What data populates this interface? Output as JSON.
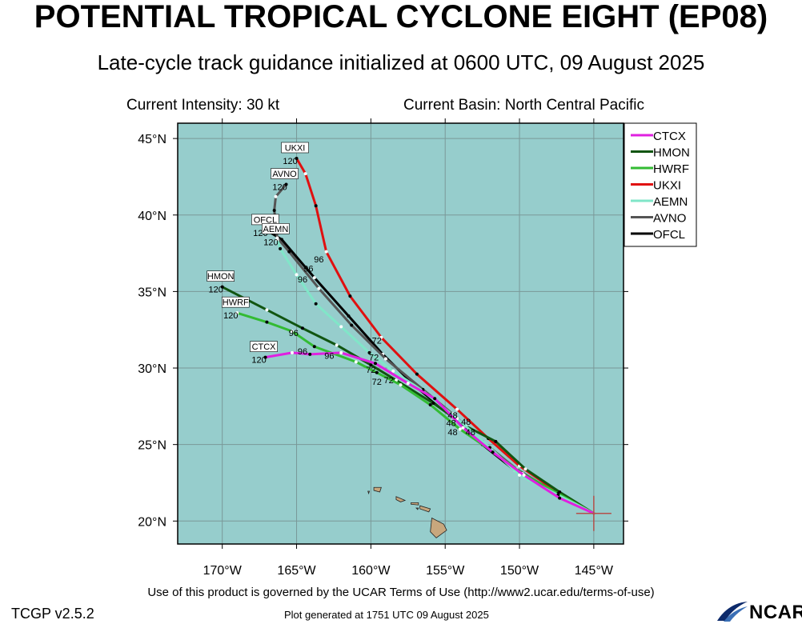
{
  "title": "POTENTIAL TROPICAL CYCLONE EIGHT (EP08)",
  "subtitle": "Late-cycle track guidance initialized at 0600 UTC, 09 August 2025",
  "current_intensity": "Current Intensity: 30 kt",
  "current_basin": "Current Basin: North Central Pacific",
  "terms": "Use of this product is governed by the UCAR Terms of Use (http://www2.ucar.edu/terms-of-use)",
  "version": "TCGP v2.5.2",
  "generated": "Plot generated at 1751 UTC   09 August 2025",
  "logo_text": "NCAR",
  "colors": {
    "ocean": "#96cdcc",
    "land": "#c8a77d",
    "grid": "#7a9898",
    "current_position": "#b4504a"
  },
  "map": {
    "lon_range": [
      -173,
      -143
    ],
    "lat_range": [
      18.5,
      46
    ],
    "lon_ticks": [
      "170°W",
      "165°W",
      "160°W",
      "155°W",
      "150°W",
      "145°W"
    ],
    "lat_ticks": [
      "20°N",
      "25°N",
      "30°N",
      "35°N",
      "40°N",
      "45°N"
    ],
    "current_position": [
      -145,
      20.5
    ]
  },
  "legend": [
    {
      "name": "CTCX",
      "color": "#e020e0"
    },
    {
      "name": "HMON",
      "color": "#115511"
    },
    {
      "name": "HWRF",
      "color": "#33bb33"
    },
    {
      "name": "UKXI",
      "color": "#e01010"
    },
    {
      "name": "AEMN",
      "color": "#80e6c8"
    },
    {
      "name": "AVNO",
      "color": "#555555"
    },
    {
      "name": "OFCL",
      "color": "#000000"
    }
  ],
  "tracks": [
    {
      "name": "OFCL",
      "color": "#000000",
      "end_label": "OFCL",
      "end_tau": "120",
      "points": [
        [
          -145,
          20.5
        ],
        [
          -147.5,
          21.9
        ],
        [
          -150.3,
          23.3
        ],
        [
          -152.5,
          25
        ],
        [
          -154.5,
          26.8
        ],
        [
          -157,
          28.8
        ],
        [
          -159.2,
          30.9
        ],
        [
          -161.5,
          33.4
        ],
        [
          -163.8,
          35.9
        ],
        [
          -166,
          38.4
        ],
        [
          -167,
          39
        ]
      ],
      "tau_labels": []
    },
    {
      "name": "AVNO",
      "color": "#555555",
      "end_label": "AVNO",
      "end_tau": "120",
      "points": [
        [
          -145,
          20.5
        ],
        [
          -147.5,
          21.8
        ],
        [
          -150.2,
          23.4
        ],
        [
          -152.5,
          25.2
        ],
        [
          -154.5,
          27
        ],
        [
          -156.5,
          28.6
        ],
        [
          -159,
          30.6
        ],
        [
          -161.3,
          32.8
        ],
        [
          -163.5,
          35.2
        ],
        [
          -165.5,
          37.6
        ],
        [
          -166.3,
          38.5
        ],
        [
          -166.5,
          40.3
        ],
        [
          -166.4,
          41.2
        ],
        [
          -165.7,
          42
        ]
      ],
      "tau_labels": [
        {
          "text": "96",
          "lon": -164.2,
          "lat": 36.3
        }
      ]
    },
    {
      "name": "UKXI",
      "color": "#e01010",
      "end_label": "UKXI",
      "end_tau": "120",
      "points": [
        [
          -145,
          20.5
        ],
        [
          -147.6,
          22
        ],
        [
          -150,
          23.6
        ],
        [
          -152.1,
          25.4
        ],
        [
          -154.2,
          27.3
        ],
        [
          -156.9,
          29.6
        ],
        [
          -159.3,
          32
        ],
        [
          -161.4,
          34.7
        ],
        [
          -163,
          37.6
        ],
        [
          -163.7,
          40.6
        ],
        [
          -164.4,
          42.7
        ],
        [
          -165,
          43.7
        ]
      ],
      "tau_labels": [
        {
          "text": "72",
          "lon": -159.6,
          "lat": 31.6
        },
        {
          "text": "96",
          "lon": -163.5,
          "lat": 36.9
        },
        {
          "text": "48",
          "lon": -154.5,
          "lat": 26.7
        }
      ]
    },
    {
      "name": "HMON",
      "color": "#115511",
      "end_label": "HMON",
      "end_tau": "120",
      "points": [
        [
          -145,
          20.5
        ],
        [
          -147.3,
          21.9
        ],
        [
          -149.6,
          23.4
        ],
        [
          -151.6,
          25.2
        ],
        [
          -153.6,
          26.2
        ],
        [
          -155.8,
          27.7
        ],
        [
          -158.3,
          29.2
        ],
        [
          -160,
          30.2
        ],
        [
          -162.3,
          31.5
        ],
        [
          -164.6,
          32.6
        ],
        [
          -167,
          33.8
        ],
        [
          -170,
          35.3
        ]
      ],
      "tau_labels": [
        {
          "text": "96",
          "lon": -165.2,
          "lat": 32.1
        },
        {
          "text": "48",
          "lon": -153.3,
          "lat": 25.6
        }
      ]
    },
    {
      "name": "HWRF",
      "color": "#33bb33",
      "end_label": "HWRF",
      "end_tau": "120",
      "points": [
        [
          -145,
          20.5
        ],
        [
          -147.4,
          21.8
        ],
        [
          -149.8,
          23.1
        ],
        [
          -151.9,
          24.6
        ],
        [
          -154,
          26
        ],
        [
          -156,
          27.6
        ],
        [
          -158,
          28.9
        ],
        [
          -159.6,
          29.7
        ],
        [
          -161,
          30.4
        ],
        [
          -163.8,
          31.4
        ],
        [
          -165.3,
          32.4
        ],
        [
          -167,
          33
        ],
        [
          -169,
          33.6
        ]
      ],
      "tau_labels": [
        {
          "text": "96",
          "lon": -164.6,
          "lat": 30.9
        },
        {
          "text": "72",
          "lon": -159.6,
          "lat": 28.9
        },
        {
          "text": "48",
          "lon": -154.5,
          "lat": 25.6
        }
      ]
    },
    {
      "name": "AEMN",
      "color": "#80e6c8",
      "end_label": "AEMN",
      "end_tau": "120",
      "points": [
        [
          -145,
          20.5
        ],
        [
          -147.4,
          21.7
        ],
        [
          -150,
          23
        ],
        [
          -152,
          24.8
        ],
        [
          -154.2,
          26.7
        ],
        [
          -156.5,
          28.5
        ],
        [
          -158.5,
          29.8
        ],
        [
          -160.1,
          31
        ],
        [
          -162,
          32.7
        ],
        [
          -163.7,
          34.2
        ],
        [
          -165,
          36.1
        ],
        [
          -166.1,
          37.8
        ],
        [
          -166.3,
          38.4
        ]
      ],
      "tau_labels": [
        {
          "text": "96",
          "lon": -164.6,
          "lat": 35.6
        },
        {
          "text": "48",
          "lon": -153.6,
          "lat": 26.3
        }
      ]
    },
    {
      "name": "CTCX",
      "color": "#e020e0",
      "end_label": "CTCX",
      "end_tau": "120",
      "points": [
        [
          -145,
          20.5
        ],
        [
          -147.3,
          21.5
        ],
        [
          -149.7,
          23
        ],
        [
          -151.8,
          24.5
        ],
        [
          -153.8,
          26.1
        ],
        [
          -155.7,
          28
        ],
        [
          -157.5,
          29
        ],
        [
          -159.7,
          30.3
        ],
        [
          -162,
          31
        ],
        [
          -164.1,
          30.9
        ],
        [
          -165.3,
          31
        ],
        [
          -167.1,
          30.7
        ]
      ],
      "tau_labels": [
        {
          "text": "96",
          "lon": -162.8,
          "lat": 30.6
        },
        {
          "text": "72",
          "lon": -160,
          "lat": 29.7
        },
        {
          "text": "72",
          "lon": -158.8,
          "lat": 29
        },
        {
          "text": "72",
          "lon": -159.8,
          "lat": 30.5
        },
        {
          "text": "48",
          "lon": -154.6,
          "lat": 26.2
        }
      ]
    }
  ]
}
